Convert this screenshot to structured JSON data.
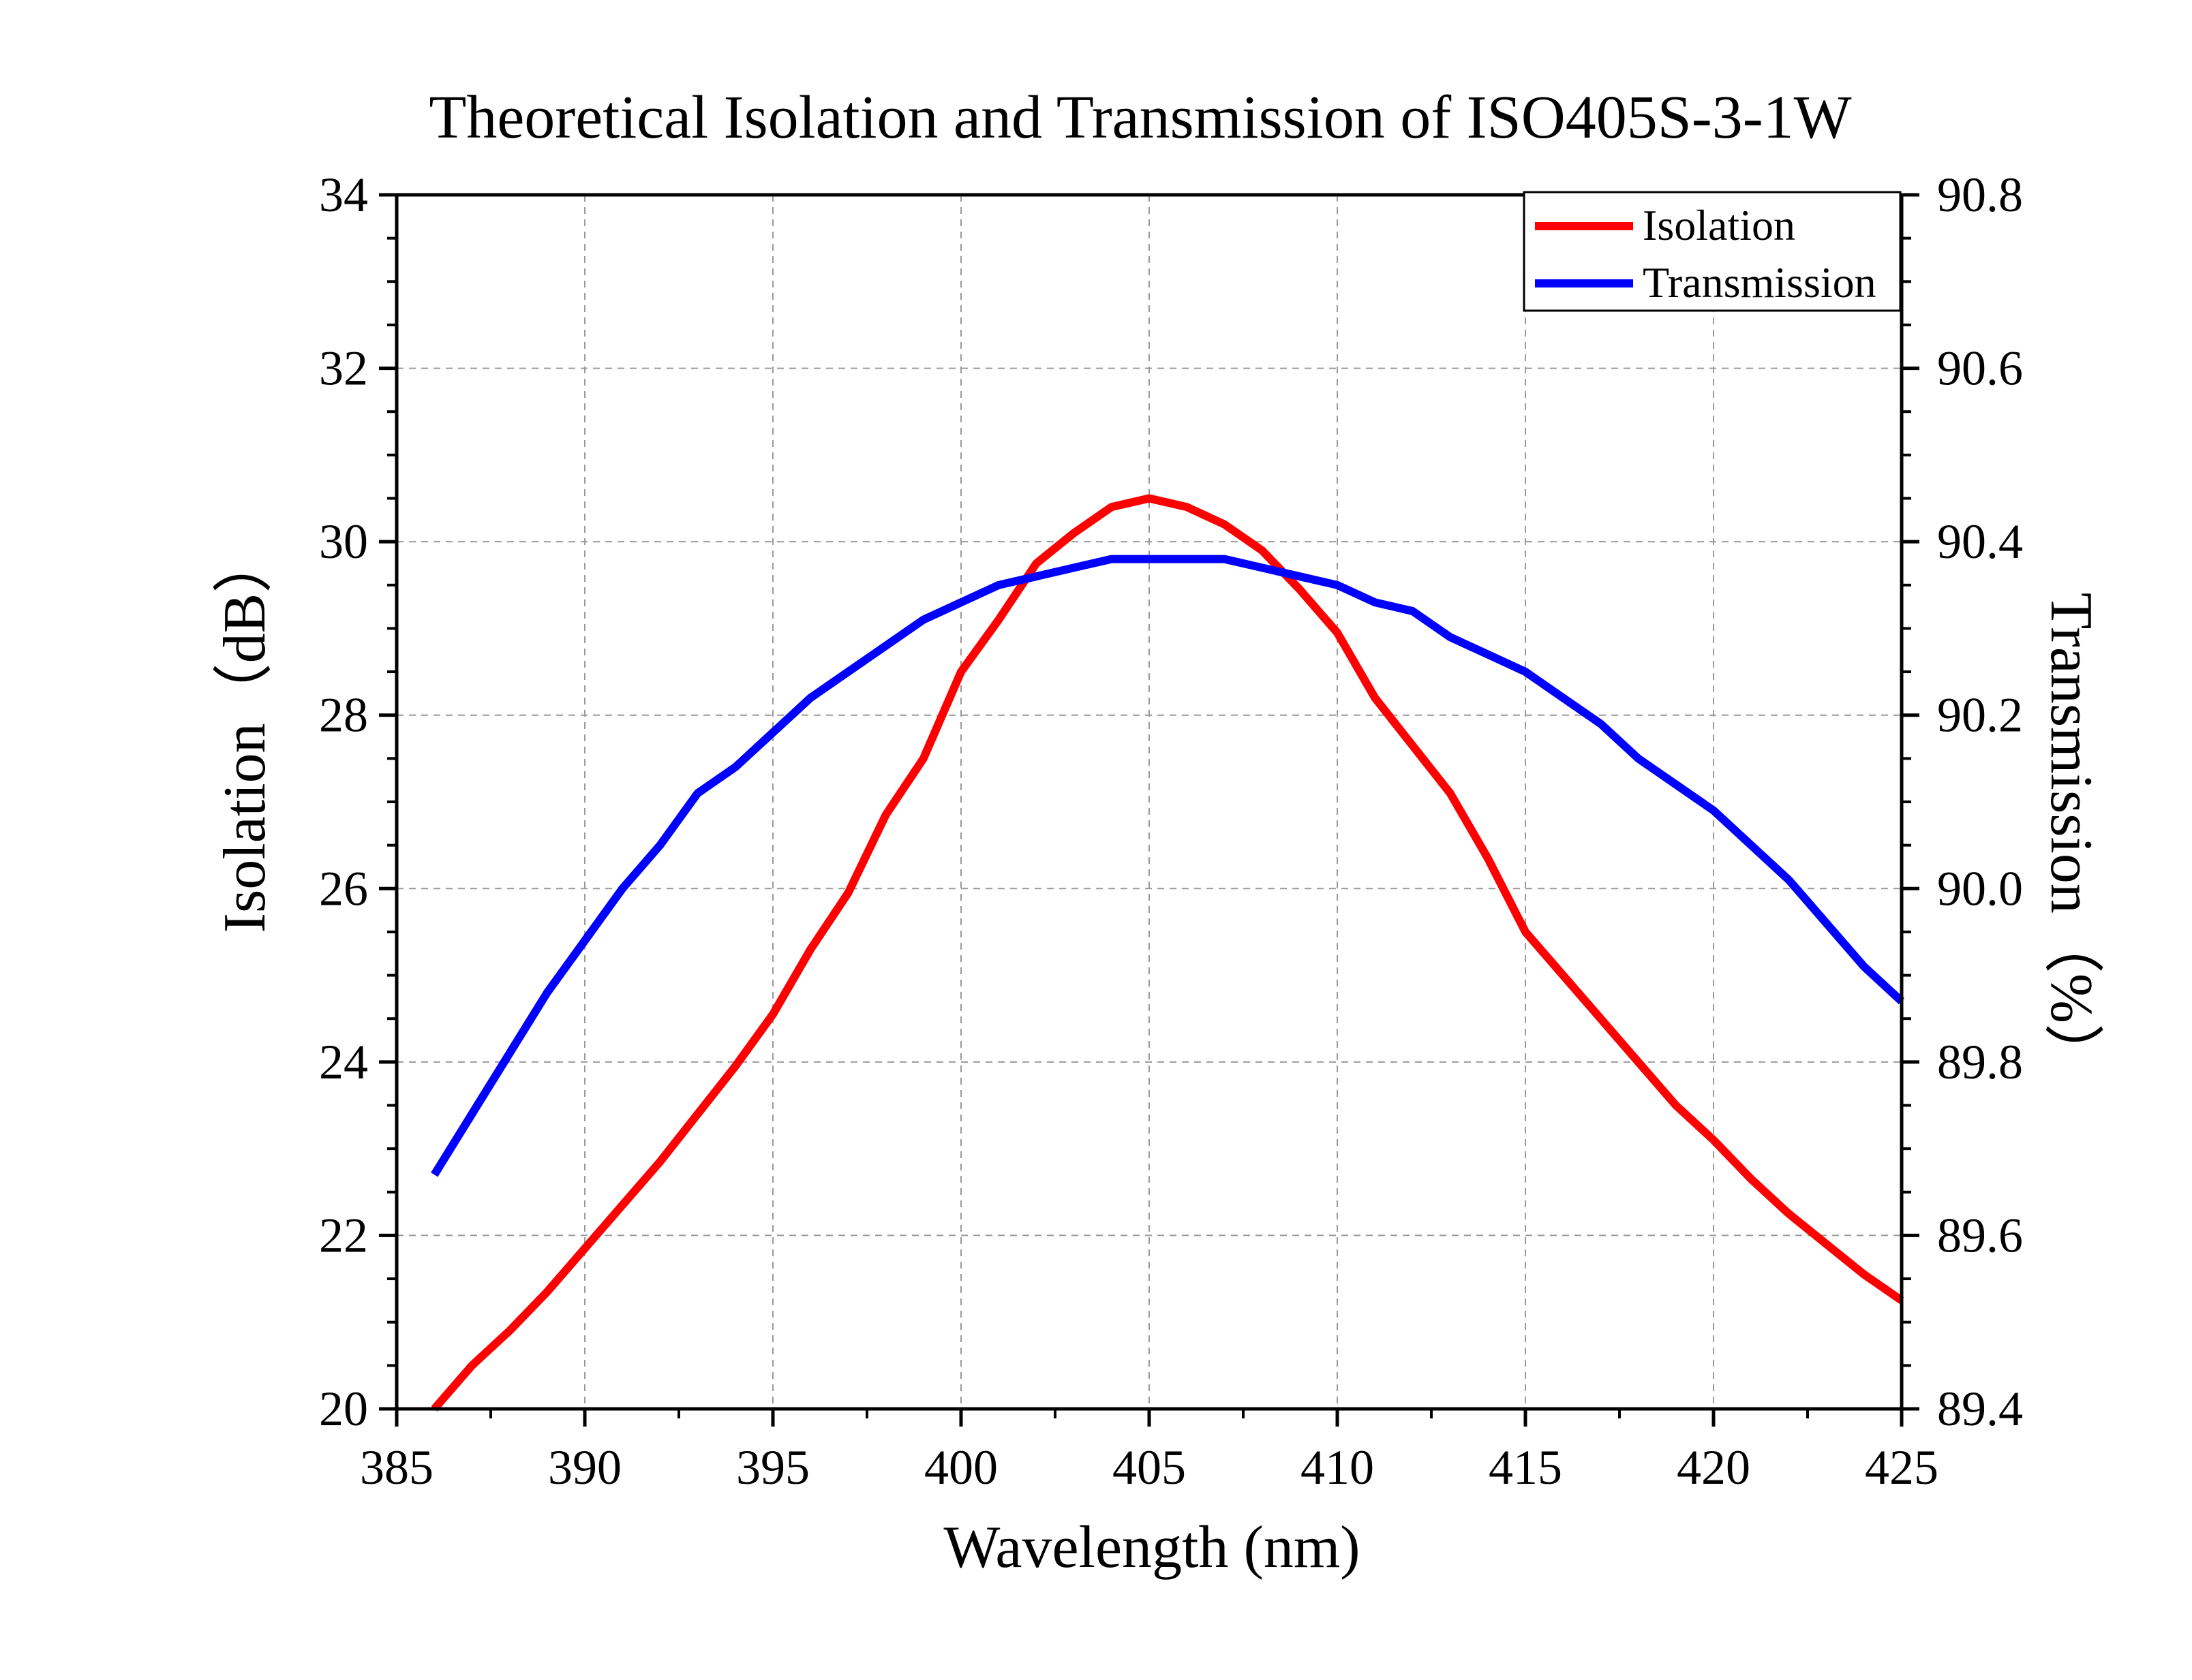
{
  "chart_data": {
    "type": "line",
    "title": "Theoretical Isolation and Transmission of ISO405S-3-1W",
    "xlabel": "Wavelength (nm)",
    "ylabel": "Isolation（dB）",
    "y2label": "Transmission（%）",
    "xlim": [
      385,
      425
    ],
    "ylim": [
      20,
      34
    ],
    "y2lim": [
      89.4,
      90.8
    ],
    "xticks": [
      "385",
      "390",
      "395",
      "400",
      "405",
      "410",
      "415",
      "420",
      "425"
    ],
    "yticks": [
      "20",
      "22",
      "24",
      "26",
      "28",
      "30",
      "32",
      "34"
    ],
    "y2ticks": [
      "89.4",
      "89.6",
      "89.8",
      "90.0",
      "90.2",
      "90.4",
      "90.6",
      "90.8"
    ],
    "grid": true,
    "legend_position": "top-right",
    "x": [
      386,
      387,
      388,
      389,
      390,
      391,
      392,
      393,
      394,
      395,
      396,
      397,
      398,
      399,
      400,
      401,
      402,
      403,
      404,
      405,
      406,
      407,
      408,
      409,
      410,
      411,
      412,
      413,
      414,
      415,
      416,
      417,
      418,
      419,
      420,
      421,
      422,
      423,
      424,
      425
    ],
    "series": [
      {
        "name": "Isolation",
        "axis": "left",
        "color": "#ff0000",
        "values": [
          20.0,
          20.5,
          20.9,
          21.35,
          21.85,
          22.35,
          22.85,
          23.4,
          23.95,
          24.55,
          25.3,
          25.95,
          26.85,
          27.5,
          28.5,
          29.1,
          29.75,
          30.1,
          30.4,
          30.5,
          30.4,
          30.2,
          29.9,
          29.45,
          28.95,
          28.2,
          27.65,
          27.1,
          26.35,
          25.5,
          25.0,
          24.5,
          24.0,
          23.5,
          23.1,
          22.65,
          22.25,
          21.9,
          21.55,
          21.25
        ]
      },
      {
        "name": "Transmission",
        "axis": "right",
        "color": "#0000ff",
        "values": [
          89.67,
          89.74,
          89.81,
          89.88,
          89.94,
          90.0,
          90.05,
          90.11,
          90.14,
          90.18,
          90.22,
          90.25,
          90.28,
          90.31,
          90.33,
          90.35,
          90.36,
          90.37,
          90.38,
          90.38,
          90.38,
          90.38,
          90.37,
          90.36,
          90.35,
          90.33,
          90.32,
          90.29,
          90.27,
          90.25,
          90.22,
          90.19,
          90.15,
          90.12,
          90.09,
          90.05,
          90.01,
          89.96,
          89.91,
          89.87
        ]
      }
    ]
  }
}
